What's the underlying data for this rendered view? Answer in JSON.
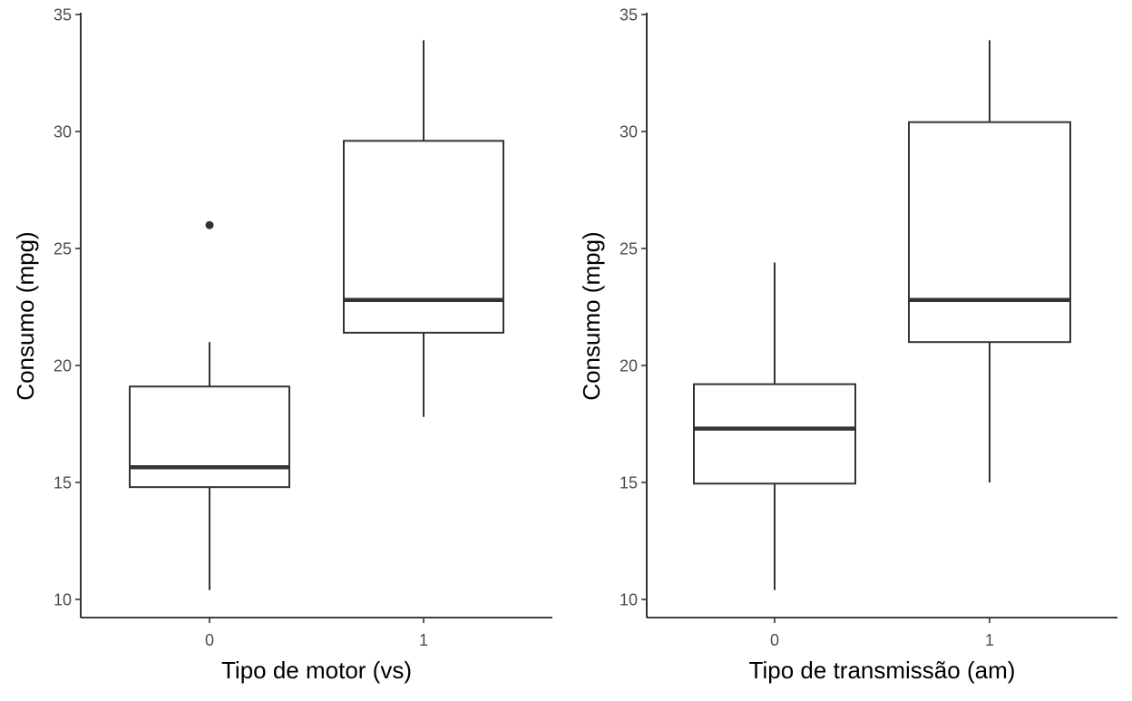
{
  "chart_data": [
    {
      "type": "boxplot",
      "xlabel": "Tipo de motor (vs)",
      "ylabel": "Consumo (mpg)",
      "ylim": [
        9.2,
        35
      ],
      "yticks": [
        10,
        15,
        20,
        25,
        30,
        35
      ],
      "categories": [
        "0",
        "1"
      ],
      "boxes": [
        {
          "category": "0",
          "min": 10.4,
          "q1": 14.8,
          "median": 15.65,
          "q3": 19.1,
          "max": 21.0,
          "outliers": [
            26.0
          ]
        },
        {
          "category": "1",
          "min": 17.8,
          "q1": 21.4,
          "median": 22.8,
          "q3": 29.6,
          "max": 33.9,
          "outliers": []
        }
      ],
      "grid": false,
      "legend": "none"
    },
    {
      "type": "boxplot",
      "xlabel": "Tipo de transmissão (am)",
      "ylabel": "Consumo (mpg)",
      "ylim": [
        9.2,
        35
      ],
      "yticks": [
        10,
        15,
        20,
        25,
        30,
        35
      ],
      "categories": [
        "0",
        "1"
      ],
      "boxes": [
        {
          "category": "0",
          "min": 10.4,
          "q1": 14.95,
          "median": 17.3,
          "q3": 19.2,
          "max": 24.4,
          "outliers": []
        },
        {
          "category": "1",
          "min": 15.0,
          "q1": 21.0,
          "median": 22.8,
          "q3": 30.4,
          "max": 33.9,
          "outliers": []
        }
      ],
      "grid": false,
      "legend": "none"
    }
  ],
  "colors": {
    "box_stroke": "#333333",
    "tick_label": "#4d4d4d",
    "axis": "#000000",
    "background": "#ffffff"
  }
}
